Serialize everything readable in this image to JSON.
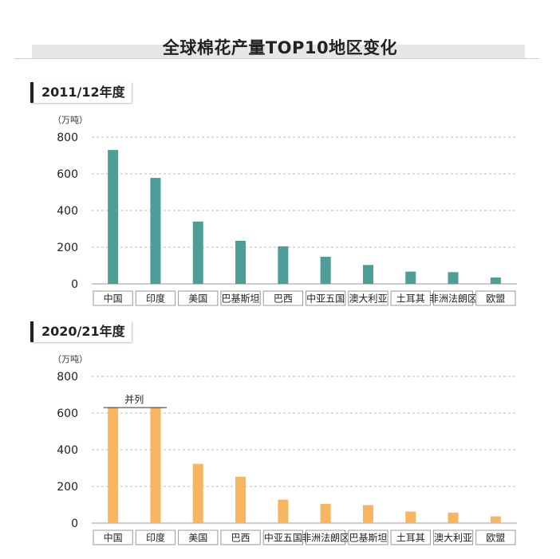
{
  "title": "全球棉花产量TOP10地区变化",
  "chart_data": [
    {
      "type": "bar",
      "section_label": "2011/12年度",
      "unit": "（万吨）",
      "categories": [
        "中国",
        "印度",
        "美国",
        "巴基斯坦",
        "巴西",
        "中亚五国",
        "澳大利亚",
        "土耳其",
        "非洲法朗区",
        "欧盟"
      ],
      "values": [
        730,
        578,
        340,
        235,
        205,
        148,
        103,
        67,
        64,
        35
      ],
      "ylim": [
        0,
        800
      ],
      "yticks": [
        0,
        200,
        400,
        600,
        800
      ],
      "color": "#4e9e97",
      "grid": "dashed horizontal"
    },
    {
      "type": "bar",
      "section_label": "2020/21年度",
      "unit": "（万吨）",
      "categories": [
        "中国",
        "印度",
        "美国",
        "巴西",
        "中亚五国",
        "非洲法朗区",
        "巴基斯坦",
        "土耳其",
        "澳大利亚",
        "欧盟"
      ],
      "values": [
        630,
        630,
        323,
        253,
        128,
        105,
        98,
        63,
        57,
        37
      ],
      "ylim": [
        0,
        800
      ],
      "yticks": [
        0,
        200,
        400,
        600,
        800
      ],
      "color": "#f8b560",
      "grid": "dashed horizontal",
      "annotation": "并列"
    }
  ]
}
